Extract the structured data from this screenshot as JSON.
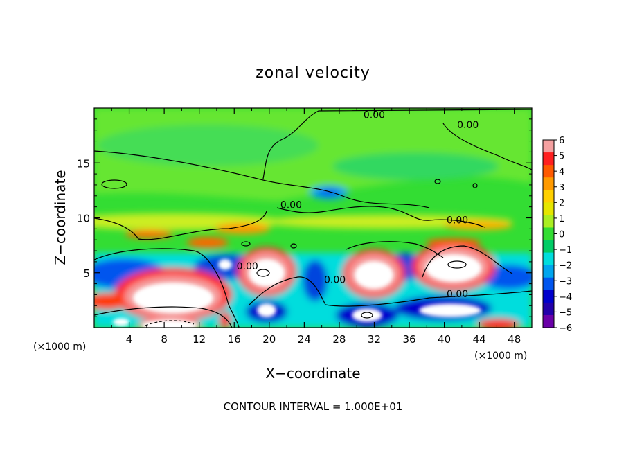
{
  "chart_data": {
    "type": "heatmap",
    "title": "zonal velocity",
    "xlabel": "X−coordinate",
    "ylabel": "Z−coordinate",
    "x_unit_left": "(×1000 m)",
    "x_unit_right": "(×1000 m)",
    "xlim": [
      0,
      50
    ],
    "ylim": [
      0,
      20
    ],
    "x_ticks": [
      4,
      8,
      12,
      16,
      20,
      24,
      28,
      32,
      36,
      40,
      44,
      48
    ],
    "y_ticks": [
      5,
      10,
      15
    ],
    "colorbar": {
      "min": -6,
      "max": 6,
      "ticks": [
        6,
        5,
        4,
        3,
        2,
        1,
        0,
        -1,
        -2,
        -3,
        -4,
        -5,
        -6
      ],
      "tick_labels": [
        "6",
        "5",
        "4",
        "3",
        "2",
        "1",
        "0",
        "−1",
        "−2",
        "−3",
        "−4",
        "−5",
        "−6"
      ],
      "colors_top_to_bottom": [
        "#f4a0a0",
        "#ff2020",
        "#ff5a00",
        "#ff9a00",
        "#ffd000",
        "#e6e600",
        "#aaee22",
        "#33dd33",
        "#00cc66",
        "#00dddd",
        "#00a5ee",
        "#0055ee",
        "#0000cc",
        "#2200aa",
        "#6a00a8"
      ],
      "placement": "right"
    },
    "contour_labels": [
      {
        "text": "0.00",
        "x": 32,
        "y": 19.4
      },
      {
        "text": "0.00",
        "x": 42.7,
        "y": 18.5
      },
      {
        "text": "0.00",
        "x": 22.5,
        "y": 11.2
      },
      {
        "text": "0.00",
        "x": 41.5,
        "y": 9.8
      },
      {
        "text": "0.00",
        "x": 17.5,
        "y": 5.6
      },
      {
        "text": "0.00",
        "x": 27.5,
        "y": 4.4
      },
      {
        "text": "0.00",
        "x": 41.5,
        "y": 3.1
      }
    ],
    "annotation": "CONTOUR INTERVAL = 1.000E+01"
  }
}
